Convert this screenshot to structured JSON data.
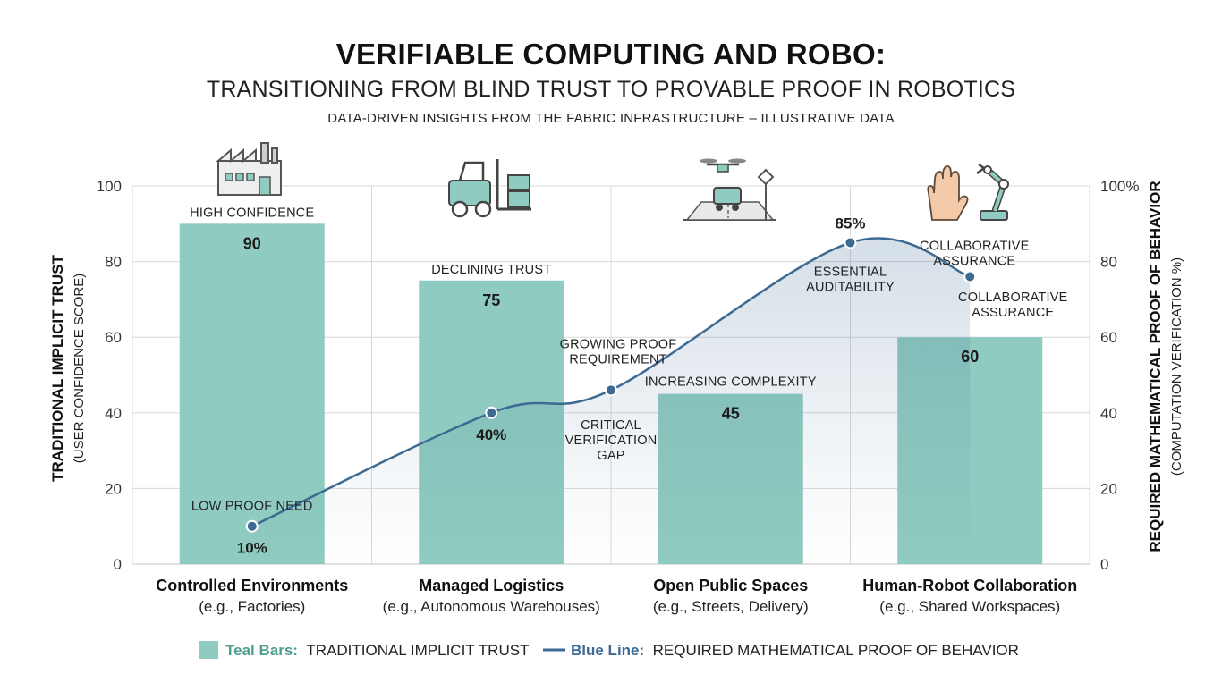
{
  "title": "VERIFIABLE COMPUTING AND  ROBO:",
  "subtitle": "TRANSITIONING FROM BLIND TRUST TO PROVABLE PROOF IN ROBOTICS",
  "source_line": "DATA-DRIVEN INSIGHTS FROM THE FABRIC INFRASTRUCTURE – ILLUSTRATIVE DATA",
  "colors": {
    "bar": "#8fcbc0",
    "line": "#3d6a92",
    "grid": "#d8d8d8",
    "legend_bar_key": "#4f9e92",
    "legend_line_key": "#3d6a92"
  },
  "icons": [
    "factory-icon",
    "forklift-icon",
    "drone-delivery-icon",
    "hand-robot-arm-icon"
  ],
  "chart_data": {
    "type": "bar",
    "categories": [
      {
        "name": "Controlled Environments",
        "example": "(e.g., Factories)"
      },
      {
        "name": "Managed Logistics",
        "example": "(e.g., Autonomous Warehouses)"
      },
      {
        "name": "Open Public Spaces",
        "example": "(e.g., Streets, Delivery)"
      },
      {
        "name": "Human-Robot Collaboration",
        "example": "(e.g., Shared Workspaces)"
      }
    ],
    "series": [
      {
        "name": "TRADITIONAL IMPLICIT TRUST",
        "type": "bar",
        "axis": "left",
        "values": [
          90,
          75,
          45,
          60
        ],
        "value_labels": [
          "90",
          "75",
          "45",
          "60"
        ],
        "annotations": [
          "HIGH CONFIDENCE",
          "DECLINING TRUST",
          "INCREASING COMPLEXITY",
          "COLLABORATIVE ASSURANCE"
        ]
      },
      {
        "name": "REQUIRED MATHEMATICAL PROOF OF BEHAVIOR",
        "type": "line",
        "axis": "right",
        "points": [
          {
            "x": 0,
            "y": 10,
            "label": "10%",
            "annotation": "LOW PROOF NEED"
          },
          {
            "x": 1,
            "y": 40,
            "label": "40%",
            "annotation": ""
          },
          {
            "x": 1.5,
            "y": 46,
            "label": "",
            "annotation": "GROWING PROOF REQUIREMENT"
          },
          {
            "x": 2.5,
            "y": 85,
            "label": "85%",
            "annotation": "ESSENTIAL AUDITABILITY"
          },
          {
            "x": 3,
            "y": 76,
            "label": "",
            "annotation": "COLLABORATIVE ASSURANCE"
          }
        ],
        "gap_annotation": "CRITICAL VERIFICATION GAP"
      }
    ],
    "y_left": {
      "label": "TRADITIONAL IMPLICIT TRUST",
      "sublabel": "(USER CONFIDENCE SCORE)",
      "range": [
        0,
        100
      ],
      "ticks": [
        "0",
        "20",
        "40",
        "60",
        "80",
        "100"
      ]
    },
    "y_right": {
      "label": "REQUIRED MATHEMATICAL PROOF OF BEHAVIOR",
      "sublabel": "(COMPUTATION VERIFICATION %)",
      "range": [
        0,
        100
      ],
      "ticks": [
        "0",
        "20",
        "40",
        "60",
        "80",
        "100%"
      ]
    },
    "grid": true,
    "legend": {
      "position": "bottom",
      "items": [
        {
          "key": "Teal Bars:",
          "text": "TRADITIONAL IMPLICIT TRUST"
        },
        {
          "key": "Blue Line:",
          "text": "REQUIRED MATHEMATICAL PROOF OF BEHAVIOR"
        }
      ]
    }
  }
}
